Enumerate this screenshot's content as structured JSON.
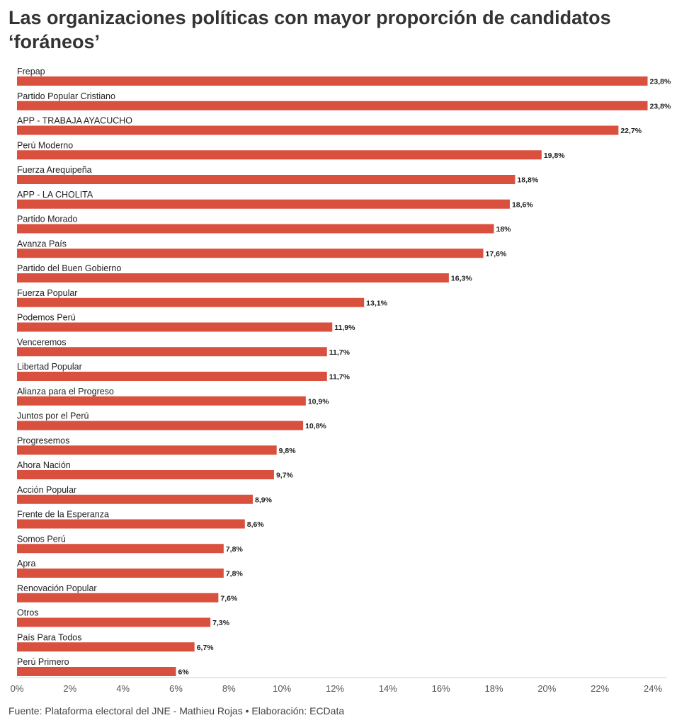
{
  "title": "Las organizaciones políticas con mayor proporción de candidatos ‘foráneos’",
  "source": "Fuente: Plataforma electoral del JNE - Mathieu Rojas • Elaboración: ECData",
  "colors": {
    "bar": "#d9503f",
    "axis": "#cccccc",
    "text": "#222222"
  },
  "chart_data": {
    "type": "bar",
    "orientation": "horizontal",
    "title": "Las organizaciones políticas con mayor proporción de candidatos ‘foráneos’",
    "xlabel": "",
    "ylabel": "",
    "xlim": [
      0,
      24
    ],
    "grid": false,
    "legend": "none",
    "ticks": [
      "0%",
      "2%",
      "4%",
      "6%",
      "8%",
      "10%",
      "12%",
      "14%",
      "16%",
      "18%",
      "20%",
      "22%",
      "24%"
    ],
    "categories": [
      "Frepap",
      "Partido Popular Cristiano",
      "APP - TRABAJA AYACUCHO",
      "Perú Moderno",
      "Fuerza Arequipeña",
      "APP - LA CHOLITA",
      "Partido Morado",
      "Avanza País",
      "Partido del Buen Gobierno",
      "Fuerza Popular",
      "Podemos Perú",
      "Venceremos",
      "Libertad Popular",
      "Alianza para el Progreso",
      "Juntos por el Perú",
      "Progresemos",
      "Ahora Nación",
      "Acción Popular",
      "Frente de la Esperanza",
      "Somos Perú",
      "Apra",
      "Renovación Popular",
      "Otros",
      "País Para Todos",
      "Perú Primero"
    ],
    "values": [
      23.8,
      23.8,
      22.7,
      19.8,
      18.8,
      18.6,
      18,
      17.6,
      16.3,
      13.1,
      11.9,
      11.7,
      11.7,
      10.9,
      10.8,
      9.8,
      9.7,
      8.9,
      8.6,
      7.8,
      7.8,
      7.6,
      7.3,
      6.7,
      6
    ],
    "value_labels": [
      "23,8%",
      "23,8%",
      "22,7%",
      "19,8%",
      "18,8%",
      "18,6%",
      "18%",
      "17,6%",
      "16,3%",
      "13,1%",
      "11,9%",
      "11,7%",
      "11,7%",
      "10,9%",
      "10,8%",
      "9,8%",
      "9,7%",
      "8,9%",
      "8,6%",
      "7,8%",
      "7,8%",
      "7,6%",
      "7,3%",
      "6,7%",
      "6%"
    ]
  }
}
